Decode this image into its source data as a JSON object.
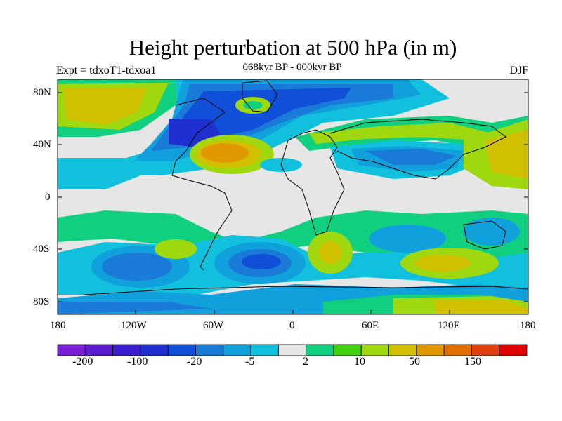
{
  "title": "Height perturbation at 500 hPa (in m)",
  "subtitle": "068kyr BP - 000kyr BP",
  "left_label": "Expt = tdxoT1-tdxoa1",
  "right_label": "DJF",
  "lat_ticks": [
    "80N",
    "40N",
    "0",
    "40S",
    "80S"
  ],
  "lon_ticks": [
    "180",
    "120W",
    "60W",
    "0",
    "60E",
    "120E",
    "180"
  ],
  "colorbar": {
    "labels": [
      "-200",
      "-100",
      "-20",
      "-5",
      "2",
      "10",
      "50",
      "150"
    ],
    "colors": [
      "#7a1fd8",
      "#5a1ad0",
      "#3c1dcf",
      "#2030d0",
      "#1050d8",
      "#1a7ad8",
      "#10a0dc",
      "#10c0dc",
      "#e6e6e6",
      "#10d080",
      "#40d010",
      "#a0d810",
      "#d0c000",
      "#e09800",
      "#e07000",
      "#e04010",
      "#e00000"
    ]
  }
}
